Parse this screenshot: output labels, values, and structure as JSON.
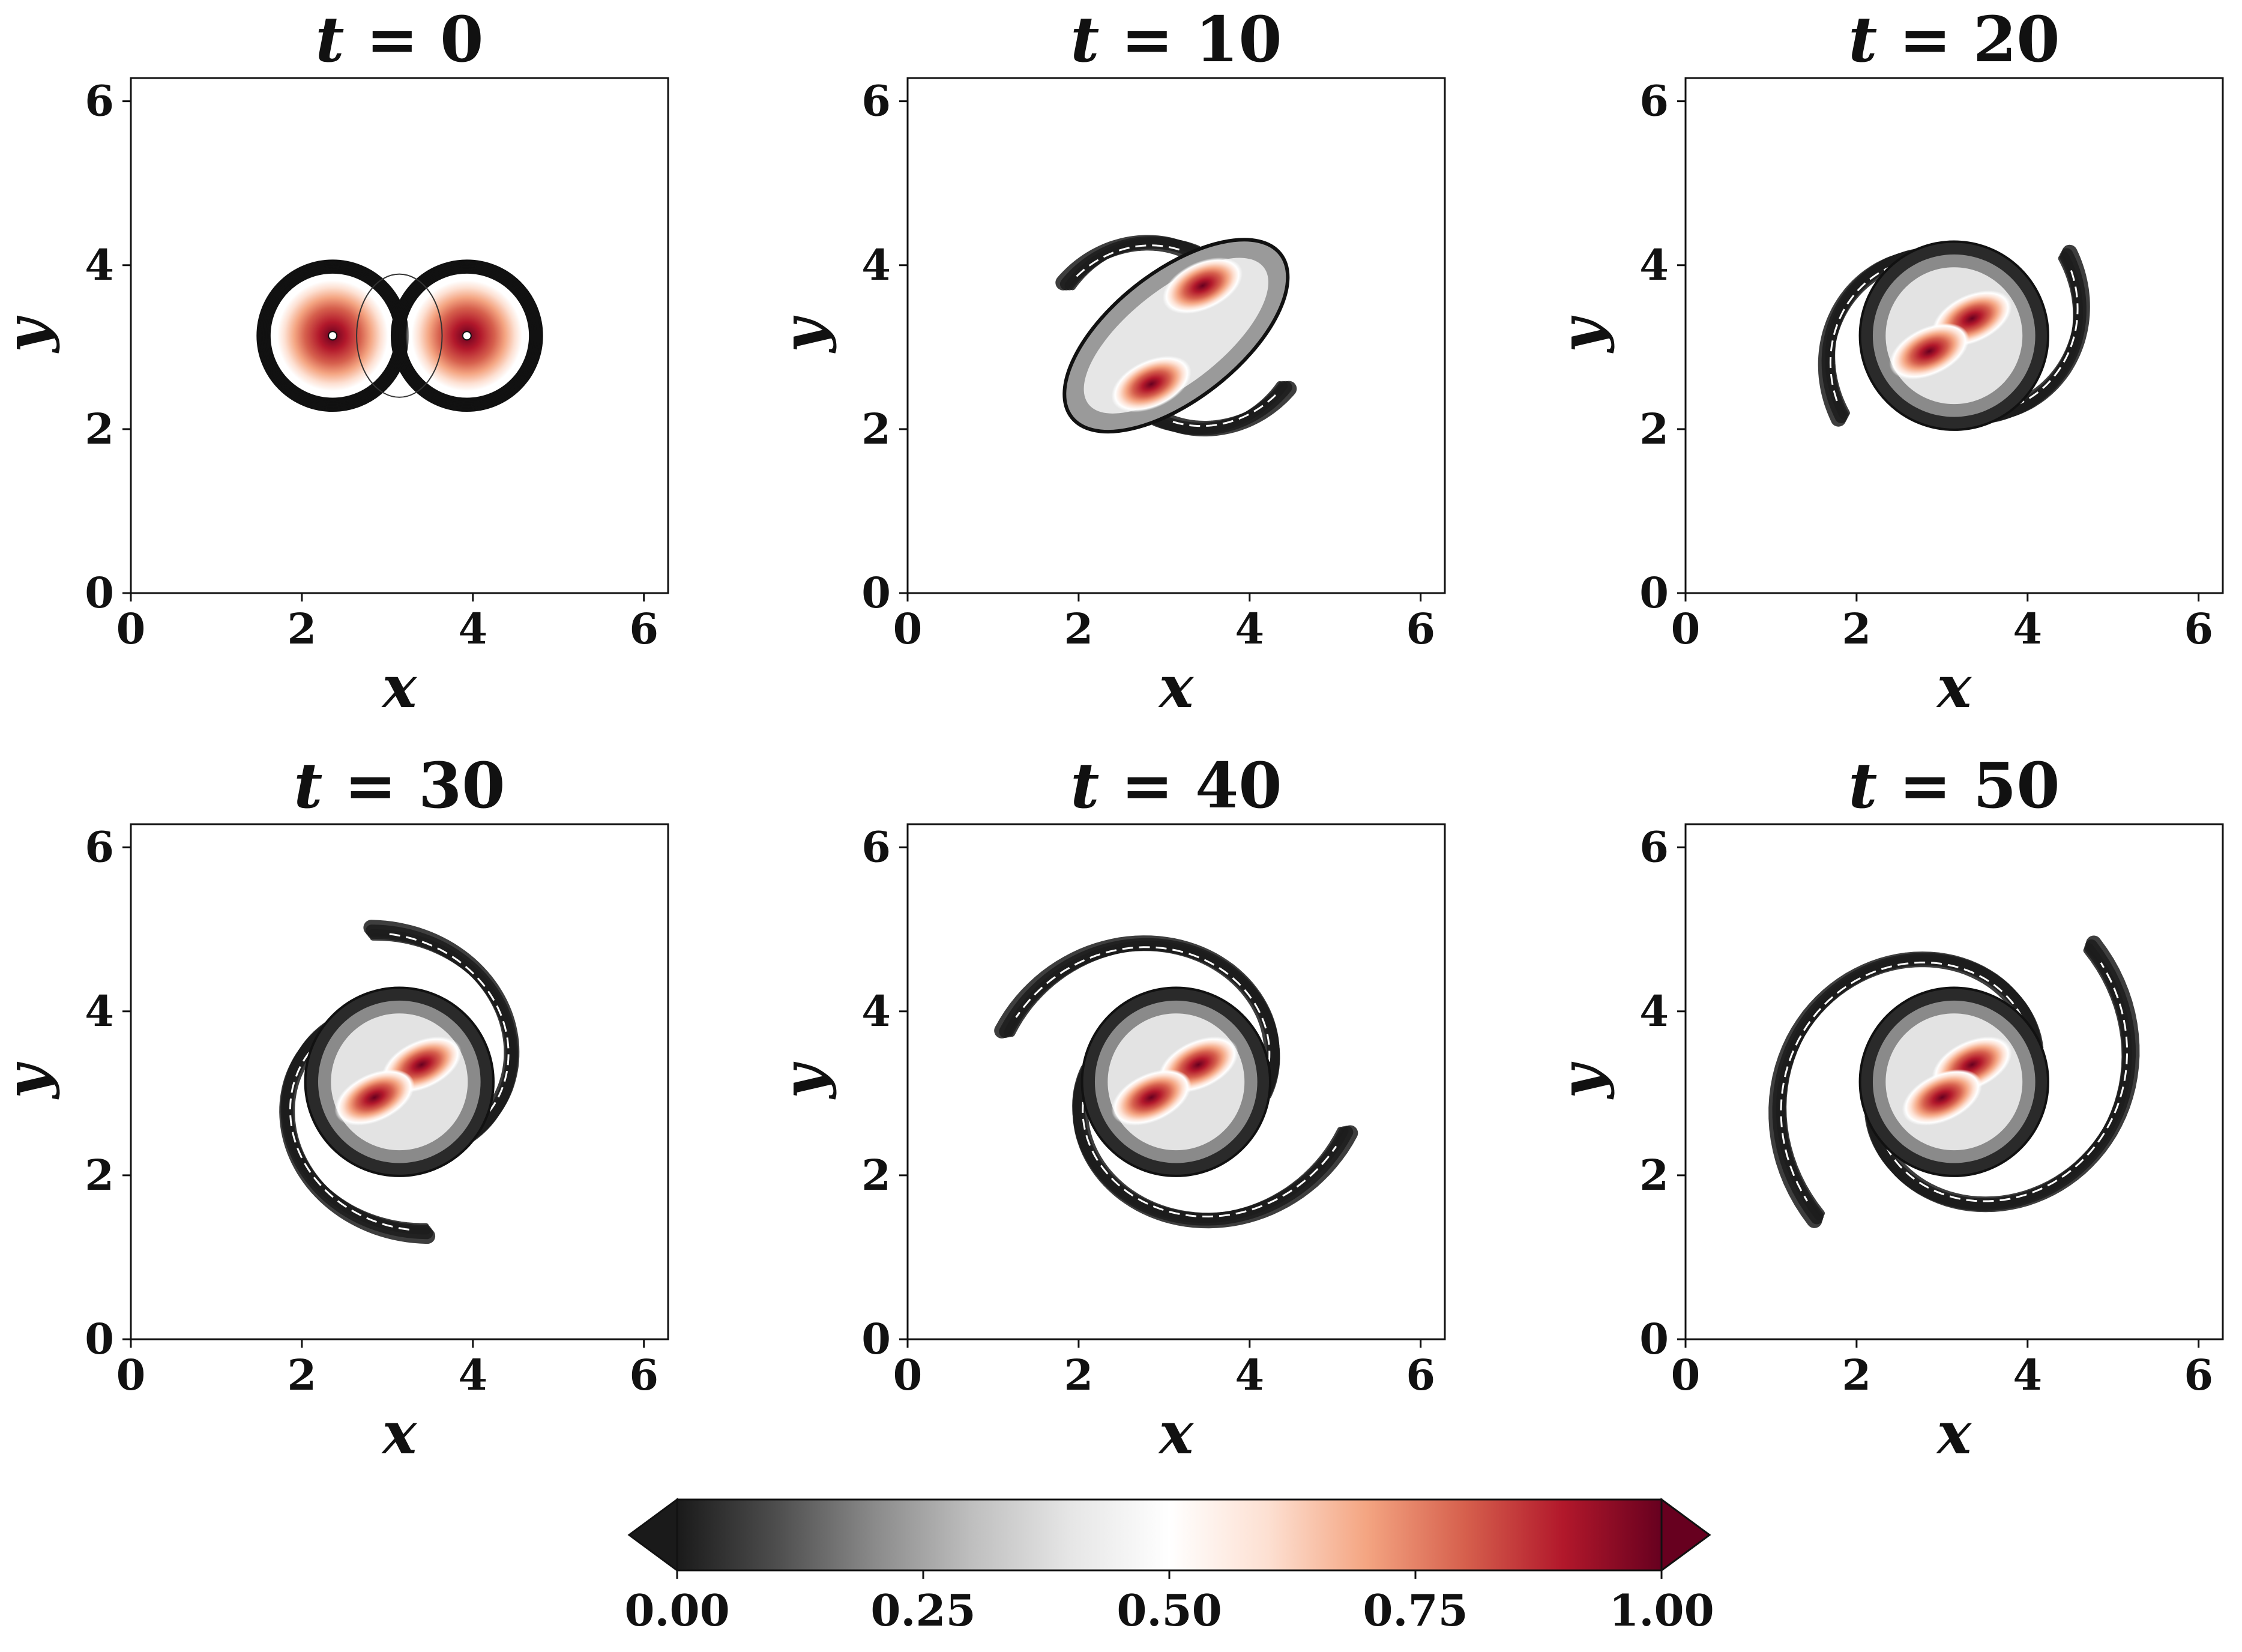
{
  "figure": {
    "panels": [
      {
        "title_var": "t",
        "title_eq": " = ",
        "title_val": "0"
      },
      {
        "title_var": "t",
        "title_eq": " = ",
        "title_val": "10"
      },
      {
        "title_var": "t",
        "title_eq": " = ",
        "title_val": "20"
      },
      {
        "title_var": "t",
        "title_eq": " = ",
        "title_val": "30"
      },
      {
        "title_var": "t",
        "title_eq": " = ",
        "title_val": "40"
      },
      {
        "title_var": "t",
        "title_eq": " = ",
        "title_val": "50"
      }
    ],
    "colorbar": {
      "ticks": [
        "0.00",
        "0.25",
        "0.50",
        "0.75",
        "1.00"
      ],
      "extend": "both",
      "colormap": [
        "#1a1a1a",
        "#4d4d4d",
        "#8a8a8a",
        "#bfbfbf",
        "#e6e6e6",
        "#ffffff",
        "#fde0d2",
        "#f4a582",
        "#d6604d",
        "#b2182b",
        "#67001f"
      ]
    }
  },
  "chart_data": [
    {
      "type": "contour",
      "title": "t = 0",
      "xlabel": "x",
      "ylabel": "y",
      "xlim": [
        0,
        6.283
      ],
      "ylim": [
        0,
        6.283
      ],
      "xticks": [
        "0",
        "2",
        "4",
        "6"
      ],
      "yticks": [
        "0",
        "2",
        "4",
        "6"
      ],
      "vortex_centers": [
        [
          2.36,
          3.14
        ],
        [
          3.93,
          3.14
        ]
      ]
    },
    {
      "type": "contour",
      "title": "t = 10",
      "xlabel": "x",
      "ylabel": "y",
      "xlim": [
        0,
        6.283
      ],
      "ylim": [
        0,
        6.283
      ],
      "xticks": [
        "0",
        "2",
        "4",
        "6"
      ],
      "yticks": [
        "0",
        "2",
        "4",
        "6"
      ],
      "vortex_centers": [
        [
          3.45,
          3.75
        ],
        [
          2.85,
          2.55
        ]
      ]
    },
    {
      "type": "contour",
      "title": "t = 20",
      "xlabel": "x",
      "ylabel": "y",
      "xlim": [
        0,
        6.283
      ],
      "ylim": [
        0,
        6.283
      ],
      "xticks": [
        "0",
        "2",
        "4",
        "6"
      ],
      "yticks": [
        "0",
        "2",
        "4",
        "6"
      ],
      "vortex_centers": [
        [
          3.35,
          3.35
        ],
        [
          2.85,
          2.95
        ]
      ]
    },
    {
      "type": "contour",
      "title": "t = 30",
      "xlabel": "x",
      "ylabel": "y",
      "xlim": [
        0,
        6.283
      ],
      "ylim": [
        0,
        6.283
      ],
      "xticks": [
        "0",
        "2",
        "4",
        "6"
      ],
      "yticks": [
        "0",
        "2",
        "4",
        "6"
      ],
      "vortex_centers": [
        [
          3.4,
          3.35
        ],
        [
          2.85,
          2.95
        ]
      ]
    },
    {
      "type": "contour",
      "title": "t = 40",
      "xlabel": "x",
      "ylabel": "y",
      "xlim": [
        0,
        6.283
      ],
      "ylim": [
        0,
        6.283
      ],
      "xticks": [
        "0",
        "2",
        "4",
        "6"
      ],
      "yticks": [
        "0",
        "2",
        "4",
        "6"
      ],
      "vortex_centers": [
        [
          3.4,
          3.35
        ],
        [
          2.85,
          2.95
        ]
      ]
    },
    {
      "type": "contour",
      "title": "t = 50",
      "xlabel": "x",
      "ylabel": "y",
      "xlim": [
        0,
        6.283
      ],
      "ylim": [
        0,
        6.283
      ],
      "xticks": [
        "0",
        "2",
        "4",
        "6"
      ],
      "yticks": [
        "0",
        "2",
        "4",
        "6"
      ],
      "vortex_centers": [
        [
          3.35,
          3.35
        ],
        [
          3.0,
          2.95
        ]
      ]
    }
  ]
}
